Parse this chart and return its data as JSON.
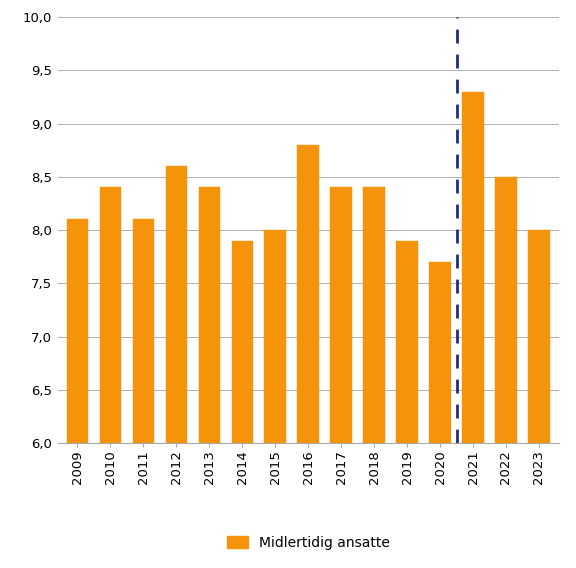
{
  "years": [
    2009,
    2010,
    2011,
    2012,
    2013,
    2014,
    2015,
    2016,
    2017,
    2018,
    2019,
    2020,
    2021,
    2022,
    2023
  ],
  "values": [
    8.1,
    8.4,
    8.1,
    8.6,
    8.4,
    7.9,
    8.0,
    8.8,
    8.4,
    8.4,
    7.9,
    7.7,
    9.3,
    8.5,
    8.0
  ],
  "bar_color": "#F5930A",
  "bar_edge_color": "#F5930A",
  "ylim": [
    6.0,
    10.0
  ],
  "yticks": [
    6.0,
    6.5,
    7.0,
    7.5,
    8.0,
    8.5,
    9.0,
    9.5,
    10.0
  ],
  "ytick_labels": [
    "6,0",
    "6,5",
    "7,0",
    "7,5",
    "8,0",
    "8,5",
    "9,0",
    "9,5",
    "10,0"
  ],
  "legend_label": "Midlertidig ansatte",
  "dashed_line_x": 11.5,
  "dashed_line_color": "#1F2D82",
  "background_color": "#ffffff",
  "grid_color": "#b0b0b0",
  "bar_width": 0.65
}
